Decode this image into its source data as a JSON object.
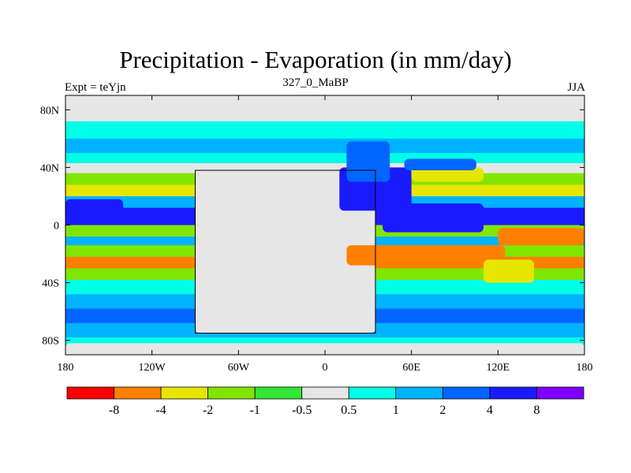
{
  "header": {
    "title": "Precipitation - Evaporation (in mm/day)",
    "subtitle": "327_0_MaBP",
    "experiment_label": "Expt = teYjn",
    "season_label": "JJA"
  },
  "chart_data": {
    "type": "heatmap",
    "title": "Precipitation - Evaporation (in mm/day)",
    "subtitle": "327_0_MaBP",
    "projection": "cylindrical equidistant",
    "xlim": [
      -180,
      180
    ],
    "ylim": [
      -90,
      90
    ],
    "x_ticks": [
      {
        "value": -180,
        "label": "180"
      },
      {
        "value": -120,
        "label": "120W"
      },
      {
        "value": -60,
        "label": "60W"
      },
      {
        "value": 0,
        "label": "0"
      },
      {
        "value": 60,
        "label": "60E"
      },
      {
        "value": 120,
        "label": "120E"
      },
      {
        "value": 180,
        "label": "180"
      }
    ],
    "y_ticks": [
      {
        "value": 80,
        "label": "80N"
      },
      {
        "value": 40,
        "label": "40N"
      },
      {
        "value": 0,
        "label": "0"
      },
      {
        "value": -40,
        "label": "40S"
      },
      {
        "value": -80,
        "label": "80S"
      }
    ],
    "colorbar": {
      "levels": [
        -8,
        -4,
        -2,
        -1,
        -0.5,
        0.5,
        1,
        2,
        4,
        8
      ],
      "level_labels": [
        "-8",
        "-4",
        "-2",
        "-1",
        "-0.5",
        "0.5",
        "1",
        "2",
        "4",
        "8"
      ],
      "colors": [
        "#ff0000",
        "#ff8000",
        "#e6e600",
        "#80e600",
        "#33e633",
        "#e6e6e6",
        "#00ffe6",
        "#00b3ff",
        "#0066ff",
        "#1a1aff",
        "#8000ff"
      ]
    },
    "zonal_bands": [
      {
        "lat": 80,
        "value": 0
      },
      {
        "lat": 72,
        "value": 0.7
      },
      {
        "lat": 60,
        "value": 1.5
      },
      {
        "lat": 50,
        "value": 0.7
      },
      {
        "lat": 43,
        "value": 0
      },
      {
        "lat": 36,
        "value": -1.5
      },
      {
        "lat": 28,
        "value": -2.5
      },
      {
        "lat": 20,
        "value": 1.2
      },
      {
        "lat": 12,
        "value": 5
      },
      {
        "lat": 6,
        "value": 6
      },
      {
        "lat": 0,
        "value": -1.5
      },
      {
        "lat": -8,
        "value": 1.5
      },
      {
        "lat": -14,
        "value": -1.5
      },
      {
        "lat": -22,
        "value": -4.5
      },
      {
        "lat": -30,
        "value": -1.5
      },
      {
        "lat": -38,
        "value": 0.7
      },
      {
        "lat": -48,
        "value": 1.5
      },
      {
        "lat": -58,
        "value": 2.5
      },
      {
        "lat": -68,
        "value": 1.5
      },
      {
        "lat": -78,
        "value": 0.7
      },
      {
        "lat": -88,
        "value": 0
      }
    ],
    "regions": [
      {
        "name": "pangea-interior",
        "value": 0,
        "lon": [
          -90,
          35
        ],
        "lat": [
          -75,
          38
        ]
      },
      {
        "name": "tethys-warm-pool",
        "value": 7,
        "lon": [
          40,
          110
        ],
        "lat": [
          -5,
          15
        ]
      },
      {
        "name": "tethys-north",
        "value": 5,
        "lon": [
          10,
          60
        ],
        "lat": [
          10,
          40
        ]
      },
      {
        "name": "tethys-north-arm",
        "value": 2.5,
        "lon": [
          15,
          45
        ],
        "lat": [
          30,
          58
        ]
      },
      {
        "name": "north-gyre-dry",
        "value": -2.5,
        "lon": [
          60,
          110
        ],
        "lat": [
          30,
          40
        ]
      },
      {
        "name": "north-gyre-wet",
        "value": 2.5,
        "lon": [
          55,
          105
        ],
        "lat": [
          38,
          46
        ]
      },
      {
        "name": "southeast-dry",
        "value": -5,
        "lon": [
          15,
          125
        ],
        "lat": [
          -28,
          -14
        ]
      },
      {
        "name": "east-coast-dry",
        "value": -2.5,
        "lon": [
          110,
          145
        ],
        "lat": [
          -40,
          -24
        ]
      },
      {
        "name": "east-pacific-dry",
        "value": -6,
        "lon": [
          120,
          180
        ],
        "lat": [
          -14,
          -2
        ]
      },
      {
        "name": "west-pacific-wet",
        "value": 5,
        "lon": [
          -180,
          -140
        ],
        "lat": [
          2,
          18
        ]
      },
      {
        "name": "polar-gray-north",
        "value": 0,
        "lon": [
          -180,
          180
        ],
        "lat": [
          80,
          90
        ]
      },
      {
        "name": "polar-gray-south",
        "value": 0,
        "lon": [
          -180,
          180
        ],
        "lat": [
          -90,
          -82
        ]
      }
    ]
  }
}
